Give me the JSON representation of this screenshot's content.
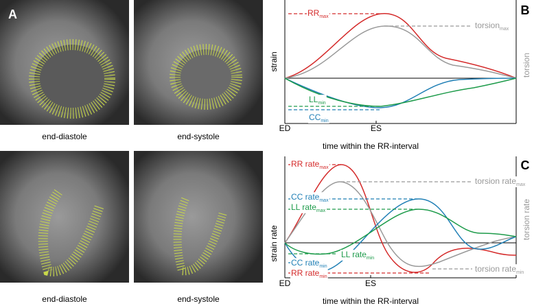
{
  "panels": [
    {
      "label": "A",
      "captions": [
        "end-diastole",
        "end-systole",
        "end-diastole",
        "end-systole"
      ]
    },
    {
      "label": "B",
      "y_label": "strain",
      "y2_label": "torsion",
      "x_label": "time within the RR-interval",
      "x_ticks": [
        "ED",
        "ES"
      ],
      "annotations": [
        {
          "text": "RR",
          "sub": "max"
        },
        {
          "text": "torsion",
          "sub": "max"
        },
        {
          "text": "LL",
          "sub": "min"
        },
        {
          "text": "CC",
          "sub": "min"
        }
      ]
    },
    {
      "label": "C",
      "y_label": "strain rate",
      "y2_label": "torsion rate",
      "x_label": "time within the RR-interval",
      "x_ticks": [
        "ED",
        "ES"
      ],
      "annotations": [
        {
          "text": "RR rate",
          "sub": "max"
        },
        {
          "text": "torsion rate",
          "sub": "max"
        },
        {
          "text": "CC rate",
          "sub": "max"
        },
        {
          "text": "LL rate",
          "sub": "max"
        },
        {
          "text": "LL rate",
          "sub": "min"
        },
        {
          "text": "CC rate",
          "sub": "min"
        },
        {
          "text": "RR rate",
          "sub": "min"
        },
        {
          "text": "torsion rate",
          "sub": "min"
        }
      ]
    }
  ]
}
